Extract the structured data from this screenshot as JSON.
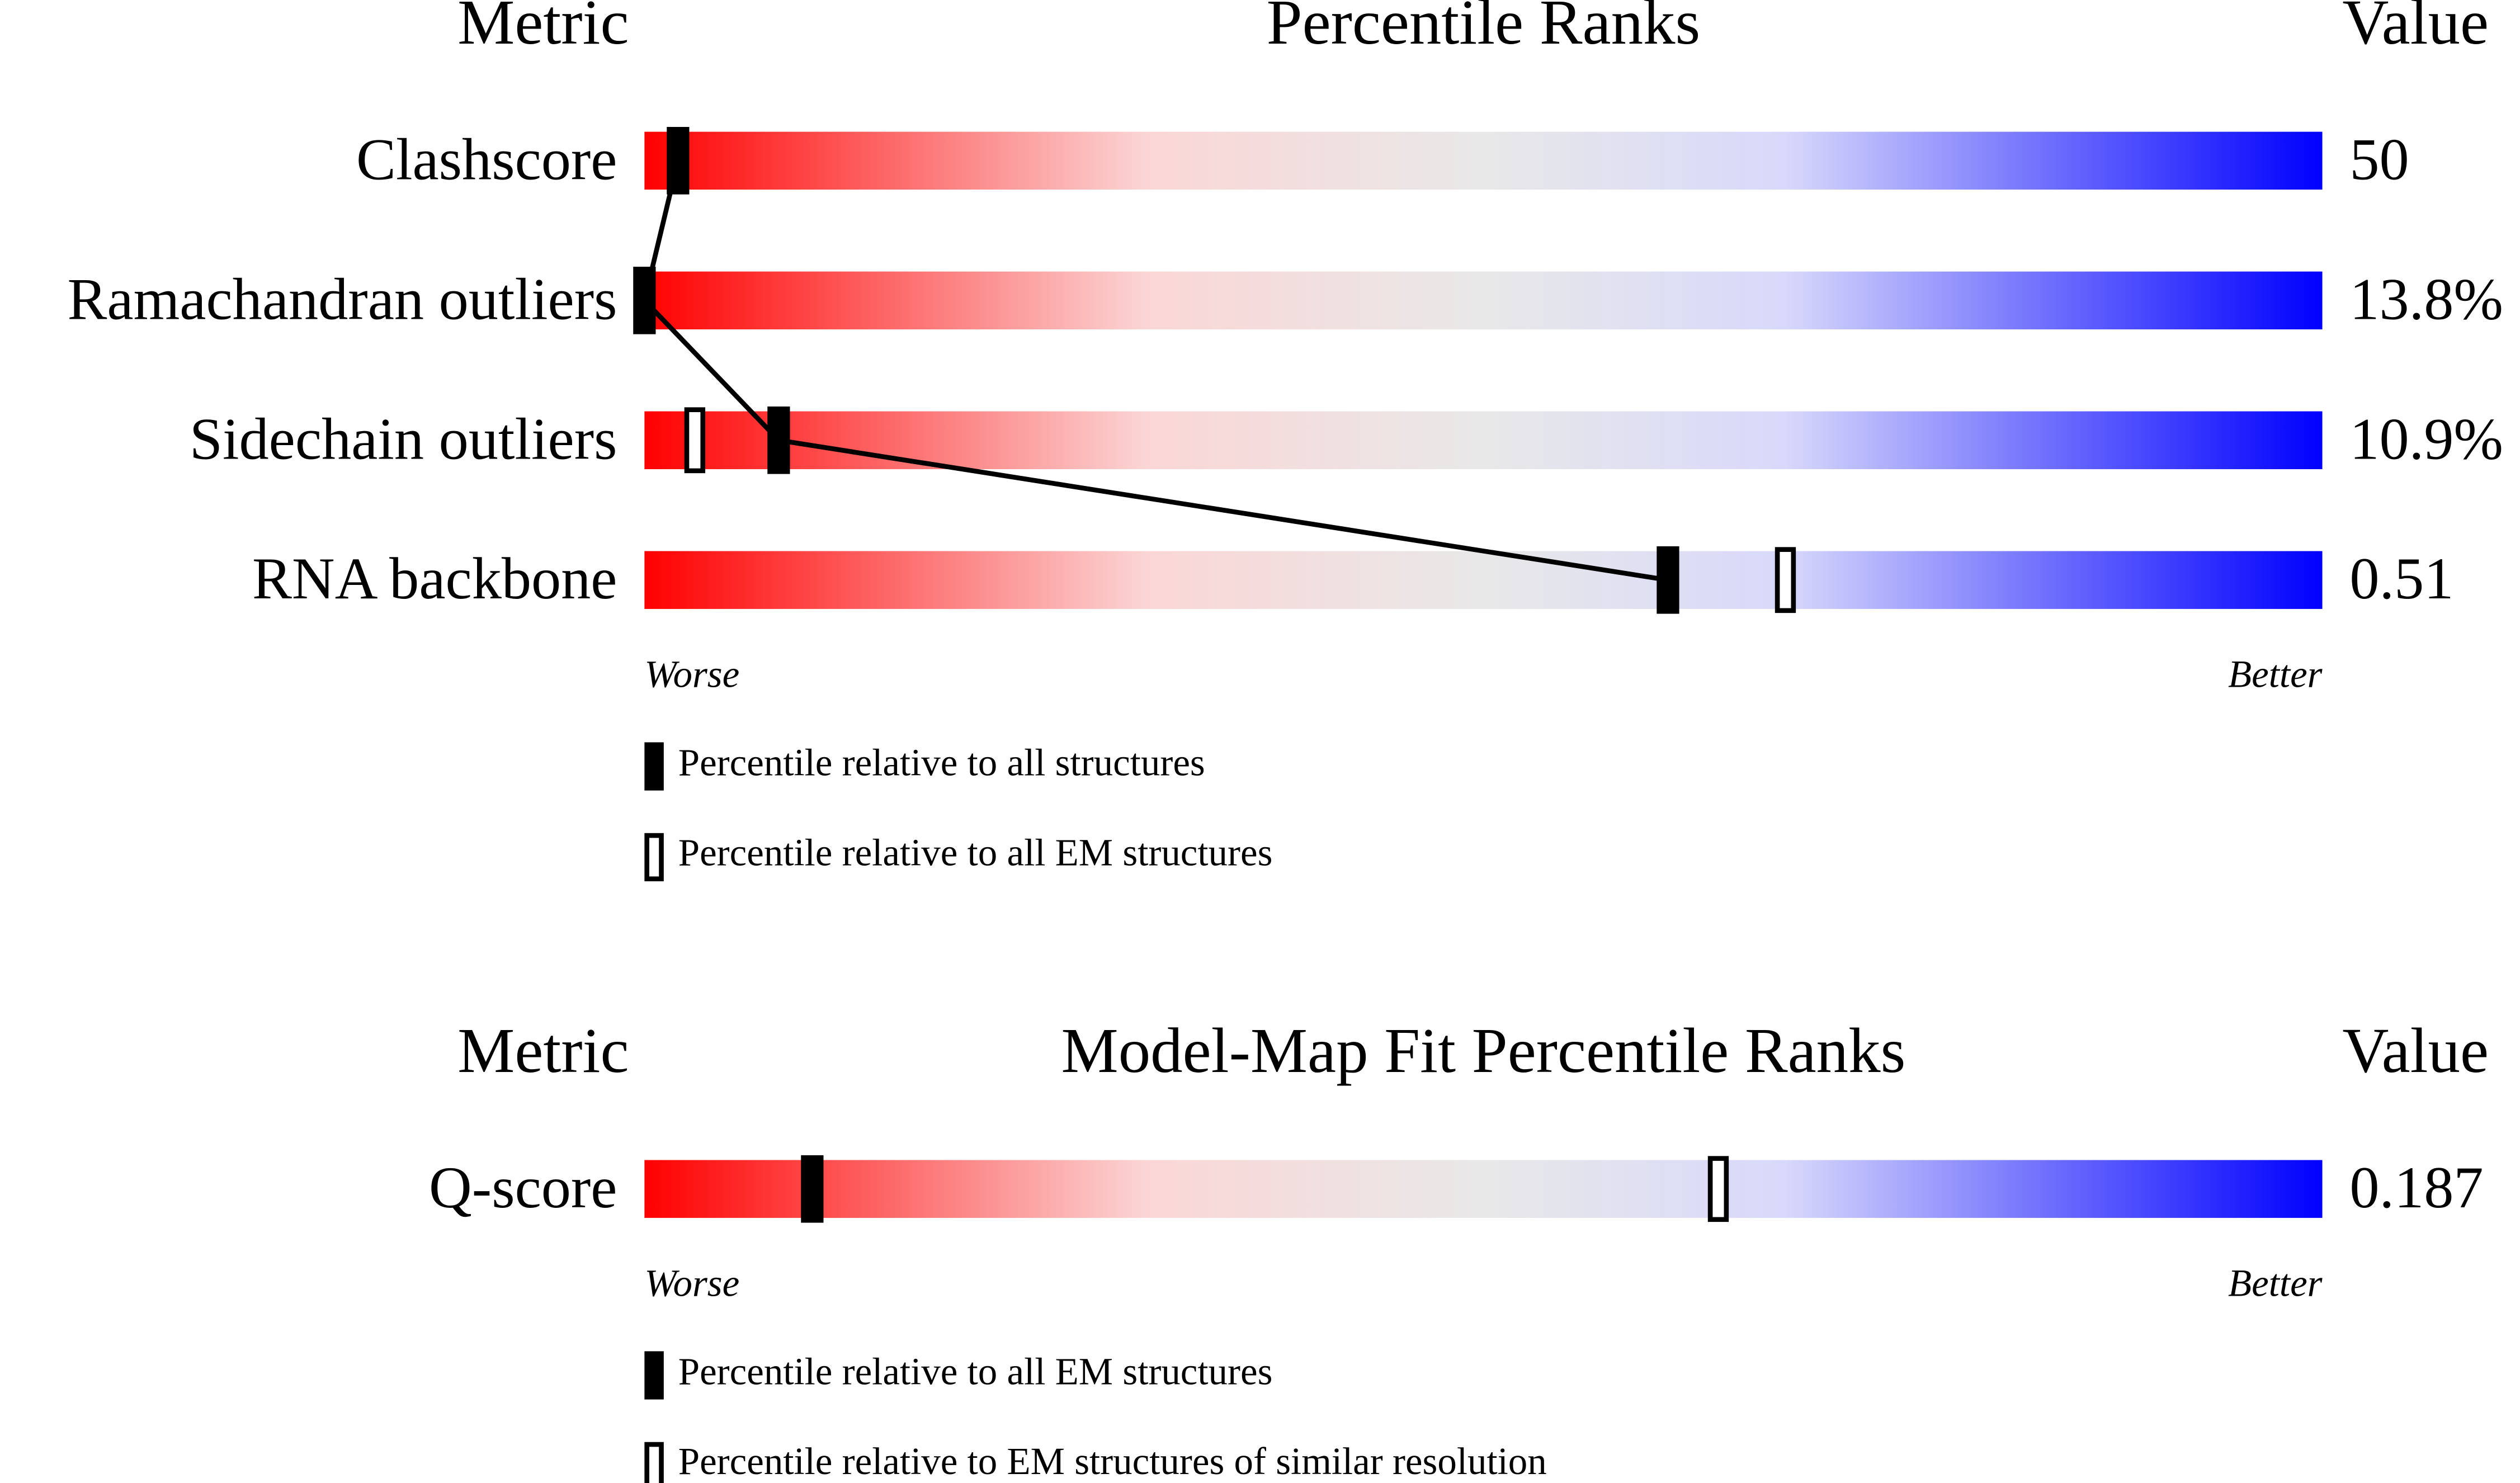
{
  "chart_data": [
    {
      "type": "percentile",
      "metric_header": "Metric",
      "title": "Percentile Ranks",
      "value_header": "Value",
      "categories": [
        "Clashscore",
        "Ramachandran outliers",
        "Sidechain outliers",
        "RNA backbone"
      ],
      "metric_values": [
        "50",
        "13.8%",
        "10.9%",
        "0.51"
      ],
      "xlim": [
        0,
        100
      ],
      "worse_label": "Worse",
      "better_label": "Better",
      "series": [
        {
          "name": "Percentile relative to all structures",
          "style": "filled",
          "color": "#000000",
          "values": [
            2,
            0,
            8,
            61
          ]
        },
        {
          "name": "Percentile relative to all EM structures",
          "style": "open",
          "color": "#000000",
          "values": [
            null,
            null,
            3,
            68
          ]
        }
      ],
      "connect_series": 0
    },
    {
      "type": "percentile",
      "metric_header": "Metric",
      "title": "Model-Map Fit Percentile Ranks",
      "value_header": "Value",
      "categories": [
        "Q-score"
      ],
      "metric_values": [
        "0.187"
      ],
      "xlim": [
        0,
        100
      ],
      "worse_label": "Worse",
      "better_label": "Better",
      "series": [
        {
          "name": "Percentile relative to all EM structures",
          "style": "filled",
          "color": "#000000",
          "values": [
            10
          ]
        },
        {
          "name": "Percentile relative to EM structures of similar resolution",
          "style": "open",
          "color": "#000000",
          "values": [
            64
          ]
        }
      ]
    }
  ]
}
